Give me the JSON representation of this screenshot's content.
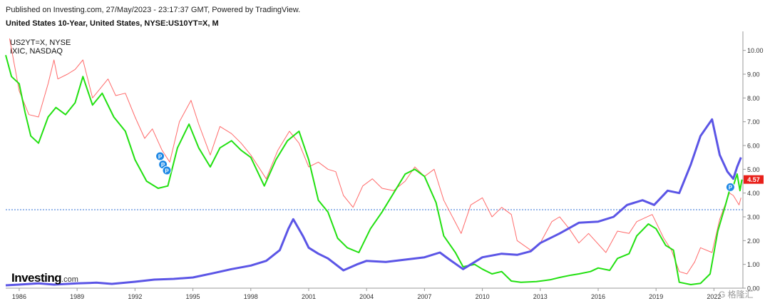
{
  "header": {
    "published": "Published on Investing.com, 27/May/2023 - 23:17:37 GMT, Powered by TradingView.",
    "title": "United States 10-Year, United States, NYSE:US10YT=X, M"
  },
  "legend": {
    "items": [
      "US2YT=X, NYSE",
      "IXIC, NASDAQ"
    ]
  },
  "branding": {
    "logo_main": "Investing",
    "logo_suffix": ".com",
    "watermark": "G 格隆汇"
  },
  "colors": {
    "us10y": "#ff6a6a",
    "us2y": "#22e011",
    "ixic": "#5b55e6",
    "ref_line": "#2f6fd6",
    "last_price_bg": "#e8201a"
  },
  "chart_data": {
    "type": "line",
    "title": "United States 10-Year, United States, NYSE:US10YT=X, M",
    "x_tick_labels": [
      "1986",
      "1989",
      "1992",
      "1995",
      "1998",
      "2001",
      "2004",
      "2007",
      "2010",
      "2013",
      "2016",
      "2019",
      "2022"
    ],
    "y_tick_labels": [
      "0.00",
      "1.00",
      "2.00",
      "3.00",
      "4.00",
      "5.00",
      "6.00",
      "7.00",
      "8.00",
      "9.00",
      "10.00"
    ],
    "ylim": [
      0,
      10.8
    ],
    "xlim": [
      1985.3,
      2023.5
    ],
    "last_price_label": "4.57",
    "reference_line_value": 3.3,
    "markers": [
      {
        "label": "P",
        "x": 1993.3,
        "y": 5.55
      },
      {
        "label": "P",
        "x": 1993.45,
        "y": 5.2
      },
      {
        "label": "P",
        "x": 1993.65,
        "y": 4.95
      },
      {
        "label": "P",
        "x": 2022.85,
        "y": 4.25
      }
    ],
    "series": [
      {
        "key": "us10y",
        "points": [
          [
            1985.5,
            10.5
          ],
          [
            1986,
            8.3
          ],
          [
            1986.5,
            7.3
          ],
          [
            1987,
            7.2
          ],
          [
            1987.5,
            8.6
          ],
          [
            1987.8,
            9.6
          ],
          [
            1988,
            8.8
          ],
          [
            1988.5,
            9.0
          ],
          [
            1988.9,
            9.2
          ],
          [
            1989.3,
            9.6
          ],
          [
            1989.8,
            8.0
          ],
          [
            1990,
            8.2
          ],
          [
            1990.6,
            8.8
          ],
          [
            1991,
            8.1
          ],
          [
            1991.5,
            8.2
          ],
          [
            1992,
            7.2
          ],
          [
            1992.5,
            6.3
          ],
          [
            1992.9,
            6.7
          ],
          [
            1993.4,
            5.8
          ],
          [
            1993.8,
            5.3
          ],
          [
            1994.3,
            7.0
          ],
          [
            1994.9,
            7.9
          ],
          [
            1995.3,
            6.9
          ],
          [
            1995.9,
            5.6
          ],
          [
            1996.4,
            6.8
          ],
          [
            1997,
            6.5
          ],
          [
            1997.5,
            6.1
          ],
          [
            1998,
            5.6
          ],
          [
            1998.8,
            4.6
          ],
          [
            1999.4,
            5.8
          ],
          [
            2000,
            6.6
          ],
          [
            2000.5,
            6.1
          ],
          [
            2001,
            5.1
          ],
          [
            2001.5,
            5.3
          ],
          [
            2002,
            5.0
          ],
          [
            2002.4,
            4.9
          ],
          [
            2002.8,
            3.9
          ],
          [
            2003.3,
            3.4
          ],
          [
            2003.8,
            4.3
          ],
          [
            2004.3,
            4.6
          ],
          [
            2004.8,
            4.2
          ],
          [
            2005.4,
            4.1
          ],
          [
            2006,
            4.5
          ],
          [
            2006.5,
            5.1
          ],
          [
            2007,
            4.7
          ],
          [
            2007.5,
            5.0
          ],
          [
            2008,
            3.7
          ],
          [
            2008.9,
            2.3
          ],
          [
            2009.4,
            3.5
          ],
          [
            2010,
            3.8
          ],
          [
            2010.5,
            3.0
          ],
          [
            2011,
            3.4
          ],
          [
            2011.5,
            3.1
          ],
          [
            2011.8,
            2.0
          ],
          [
            2012.5,
            1.6
          ],
          [
            2013,
            1.9
          ],
          [
            2013.6,
            2.8
          ],
          [
            2014,
            3.0
          ],
          [
            2014.5,
            2.5
          ],
          [
            2015,
            1.9
          ],
          [
            2015.5,
            2.3
          ],
          [
            2016.4,
            1.5
          ],
          [
            2017,
            2.4
          ],
          [
            2017.6,
            2.3
          ],
          [
            2018,
            2.8
          ],
          [
            2018.8,
            3.1
          ],
          [
            2019.4,
            2.1
          ],
          [
            2019.8,
            1.6
          ],
          [
            2020.2,
            0.7
          ],
          [
            2020.6,
            0.6
          ],
          [
            2021,
            1.1
          ],
          [
            2021.3,
            1.7
          ],
          [
            2021.9,
            1.5
          ],
          [
            2022.3,
            2.9
          ],
          [
            2022.8,
            4.0
          ],
          [
            2023,
            3.9
          ],
          [
            2023.3,
            3.5
          ],
          [
            2023.4,
            3.8
          ]
        ]
      },
      {
        "key": "us2y",
        "points": [
          [
            1985.3,
            9.8
          ],
          [
            1985.6,
            8.9
          ],
          [
            1986,
            8.6
          ],
          [
            1986.3,
            7.4
          ],
          [
            1986.6,
            6.4
          ],
          [
            1987,
            6.1
          ],
          [
            1987.5,
            7.2
          ],
          [
            1987.9,
            7.6
          ],
          [
            1988.4,
            7.3
          ],
          [
            1988.9,
            7.8
          ],
          [
            1989.3,
            8.9
          ],
          [
            1989.8,
            7.7
          ],
          [
            1990.3,
            8.2
          ],
          [
            1990.9,
            7.2
          ],
          [
            1991.5,
            6.6
          ],
          [
            1992,
            5.4
          ],
          [
            1992.6,
            4.5
          ],
          [
            1993.2,
            4.2
          ],
          [
            1993.7,
            4.3
          ],
          [
            1994.2,
            5.9
          ],
          [
            1994.8,
            6.9
          ],
          [
            1995.3,
            5.9
          ],
          [
            1995.9,
            5.1
          ],
          [
            1996.4,
            5.9
          ],
          [
            1997,
            6.2
          ],
          [
            1997.5,
            5.8
          ],
          [
            1998,
            5.5
          ],
          [
            1998.7,
            4.3
          ],
          [
            1999.3,
            5.4
          ],
          [
            1999.9,
            6.2
          ],
          [
            2000.5,
            6.6
          ],
          [
            2001,
            5.4
          ],
          [
            2001.5,
            3.7
          ],
          [
            2002,
            3.2
          ],
          [
            2002.5,
            2.1
          ],
          [
            2003,
            1.7
          ],
          [
            2003.6,
            1.5
          ],
          [
            2004.2,
            2.5
          ],
          [
            2004.8,
            3.2
          ],
          [
            2005.4,
            4.0
          ],
          [
            2006,
            4.8
          ],
          [
            2006.5,
            5.0
          ],
          [
            2007,
            4.7
          ],
          [
            2007.6,
            3.6
          ],
          [
            2008,
            2.2
          ],
          [
            2008.6,
            1.5
          ],
          [
            2009,
            0.9
          ],
          [
            2009.6,
            1.0
          ],
          [
            2010,
            0.8
          ],
          [
            2010.5,
            0.6
          ],
          [
            2011,
            0.7
          ],
          [
            2011.5,
            0.3
          ],
          [
            2012,
            0.25
          ],
          [
            2012.8,
            0.28
          ],
          [
            2013.5,
            0.35
          ],
          [
            2014,
            0.45
          ],
          [
            2014.6,
            0.55
          ],
          [
            2015,
            0.6
          ],
          [
            2015.6,
            0.7
          ],
          [
            2016,
            0.85
          ],
          [
            2016.6,
            0.75
          ],
          [
            2017,
            1.25
          ],
          [
            2017.6,
            1.45
          ],
          [
            2018,
            2.2
          ],
          [
            2018.6,
            2.7
          ],
          [
            2019,
            2.5
          ],
          [
            2019.5,
            1.8
          ],
          [
            2019.9,
            1.6
          ],
          [
            2020.2,
            0.25
          ],
          [
            2020.8,
            0.15
          ],
          [
            2021.3,
            0.2
          ],
          [
            2021.8,
            0.6
          ],
          [
            2022.2,
            2.4
          ],
          [
            2022.6,
            3.5
          ],
          [
            2022.9,
            4.4
          ],
          [
            2023,
            4.3
          ],
          [
            2023.2,
            4.8
          ],
          [
            2023.35,
            4.1
          ],
          [
            2023.45,
            4.57
          ]
        ]
      },
      {
        "key": "ixic",
        "points": [
          [
            1985.3,
            0.12
          ],
          [
            1986,
            0.15
          ],
          [
            1987,
            0.2
          ],
          [
            1987.8,
            0.15
          ],
          [
            1989,
            0.2
          ],
          [
            1990,
            0.23
          ],
          [
            1990.8,
            0.18
          ],
          [
            1992,
            0.27
          ],
          [
            1993,
            0.36
          ],
          [
            1994,
            0.39
          ],
          [
            1995,
            0.45
          ],
          [
            1996,
            0.62
          ],
          [
            1997,
            0.8
          ],
          [
            1998,
            0.95
          ],
          [
            1998.8,
            1.15
          ],
          [
            1999.5,
            1.6
          ],
          [
            1999.95,
            2.5
          ],
          [
            2000.2,
            2.9
          ],
          [
            2000.7,
            2.2
          ],
          [
            2001,
            1.7
          ],
          [
            2001.5,
            1.45
          ],
          [
            2002,
            1.25
          ],
          [
            2002.8,
            0.75
          ],
          [
            2003.5,
            1.0
          ],
          [
            2004,
            1.15
          ],
          [
            2005,
            1.1
          ],
          [
            2006,
            1.2
          ],
          [
            2007,
            1.3
          ],
          [
            2007.8,
            1.5
          ],
          [
            2008.3,
            1.2
          ],
          [
            2009,
            0.8
          ],
          [
            2009.6,
            1.1
          ],
          [
            2010,
            1.3
          ],
          [
            2011,
            1.45
          ],
          [
            2011.8,
            1.4
          ],
          [
            2012.5,
            1.55
          ],
          [
            2013,
            1.9
          ],
          [
            2014,
            2.3
          ],
          [
            2015,
            2.75
          ],
          [
            2016,
            2.8
          ],
          [
            2016.8,
            3.0
          ],
          [
            2017.5,
            3.5
          ],
          [
            2018.3,
            3.7
          ],
          [
            2018.9,
            3.5
          ],
          [
            2019.6,
            4.1
          ],
          [
            2020.2,
            4.0
          ],
          [
            2020.8,
            5.2
          ],
          [
            2021.3,
            6.4
          ],
          [
            2021.9,
            7.1
          ],
          [
            2022.3,
            5.6
          ],
          [
            2022.7,
            4.9
          ],
          [
            2023,
            4.6
          ],
          [
            2023.2,
            5.1
          ],
          [
            2023.4,
            5.5
          ]
        ]
      },
      {
        "key": "us10y_hidden",
        "points": []
      }
    ]
  }
}
